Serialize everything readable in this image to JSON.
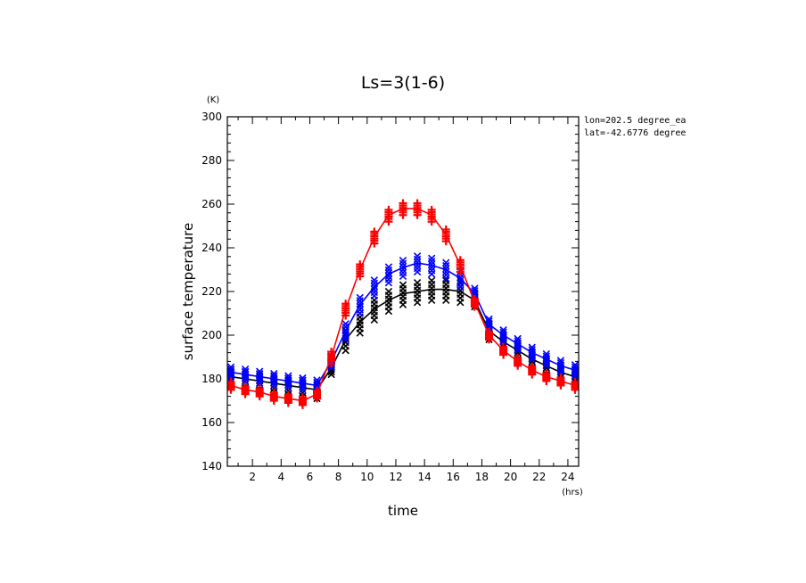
{
  "chart_data": {
    "type": "line",
    "title": "Ls=3(1-6)",
    "xlabel": "time",
    "ylabel": "surface temperature",
    "x_unit": "(hrs)",
    "y_unit": "(K)",
    "xlim": [
      0.25,
      24.75
    ],
    "ylim": [
      140,
      300
    ],
    "x_ticks": [
      2,
      4,
      6,
      8,
      10,
      12,
      14,
      16,
      18,
      20,
      22,
      24
    ],
    "y_ticks": [
      140,
      160,
      180,
      200,
      220,
      240,
      260,
      280,
      300
    ],
    "annotations": [
      "lon=202.5 degree_ea",
      "lat=-42.6776 degree"
    ],
    "x": [
      0.5,
      1.5,
      2.5,
      3.5,
      4.5,
      5.5,
      6.5,
      7.5,
      8.5,
      9.5,
      10.5,
      11.5,
      12.5,
      13.5,
      14.5,
      15.5,
      16.5,
      17.5,
      18.5,
      19.5,
      20.5,
      21.5,
      22.5,
      23.5,
      24.5
    ],
    "series": [
      {
        "color": "#000000",
        "marker": "x",
        "values": [
          181,
          180,
          179,
          178,
          177,
          176,
          175,
          185,
          198,
          206,
          212,
          216,
          219,
          220,
          221,
          221,
          220,
          216,
          202,
          197,
          193,
          189,
          186,
          183,
          181
        ],
        "spread": [
          4,
          4,
          4,
          4,
          4,
          4,
          4,
          3,
          5,
          5,
          5,
          5,
          5,
          5,
          5,
          5,
          5,
          3,
          4,
          4,
          4,
          4,
          4,
          4,
          4
        ]
      },
      {
        "color": "#0000ff",
        "marker": "x",
        "values": [
          183,
          182,
          181,
          180,
          179,
          178,
          177,
          188,
          202,
          214,
          222,
          228,
          231,
          233,
          232,
          230,
          226,
          219,
          205,
          200,
          196,
          192,
          189,
          186,
          184
        ],
        "spread": [
          3,
          3,
          3,
          3,
          3,
          3,
          3,
          3,
          4,
          4,
          4,
          4,
          4,
          4,
          4,
          4,
          4,
          3,
          3,
          3,
          3,
          3,
          3,
          3,
          3
        ]
      },
      {
        "color": "#ff0000",
        "marker": "+",
        "values": [
          177,
          175,
          174,
          172,
          171,
          170,
          173,
          190,
          212,
          230,
          245,
          255,
          258,
          258,
          255,
          246,
          232,
          215,
          200,
          193,
          188,
          184,
          181,
          179,
          177
        ],
        "spread": [
          2,
          2,
          2,
          2,
          2,
          2,
          2,
          3,
          3,
          3,
          3,
          3,
          3,
          3,
          3,
          3,
          3,
          2,
          2,
          2,
          2,
          2,
          2,
          2,
          2
        ]
      }
    ]
  }
}
